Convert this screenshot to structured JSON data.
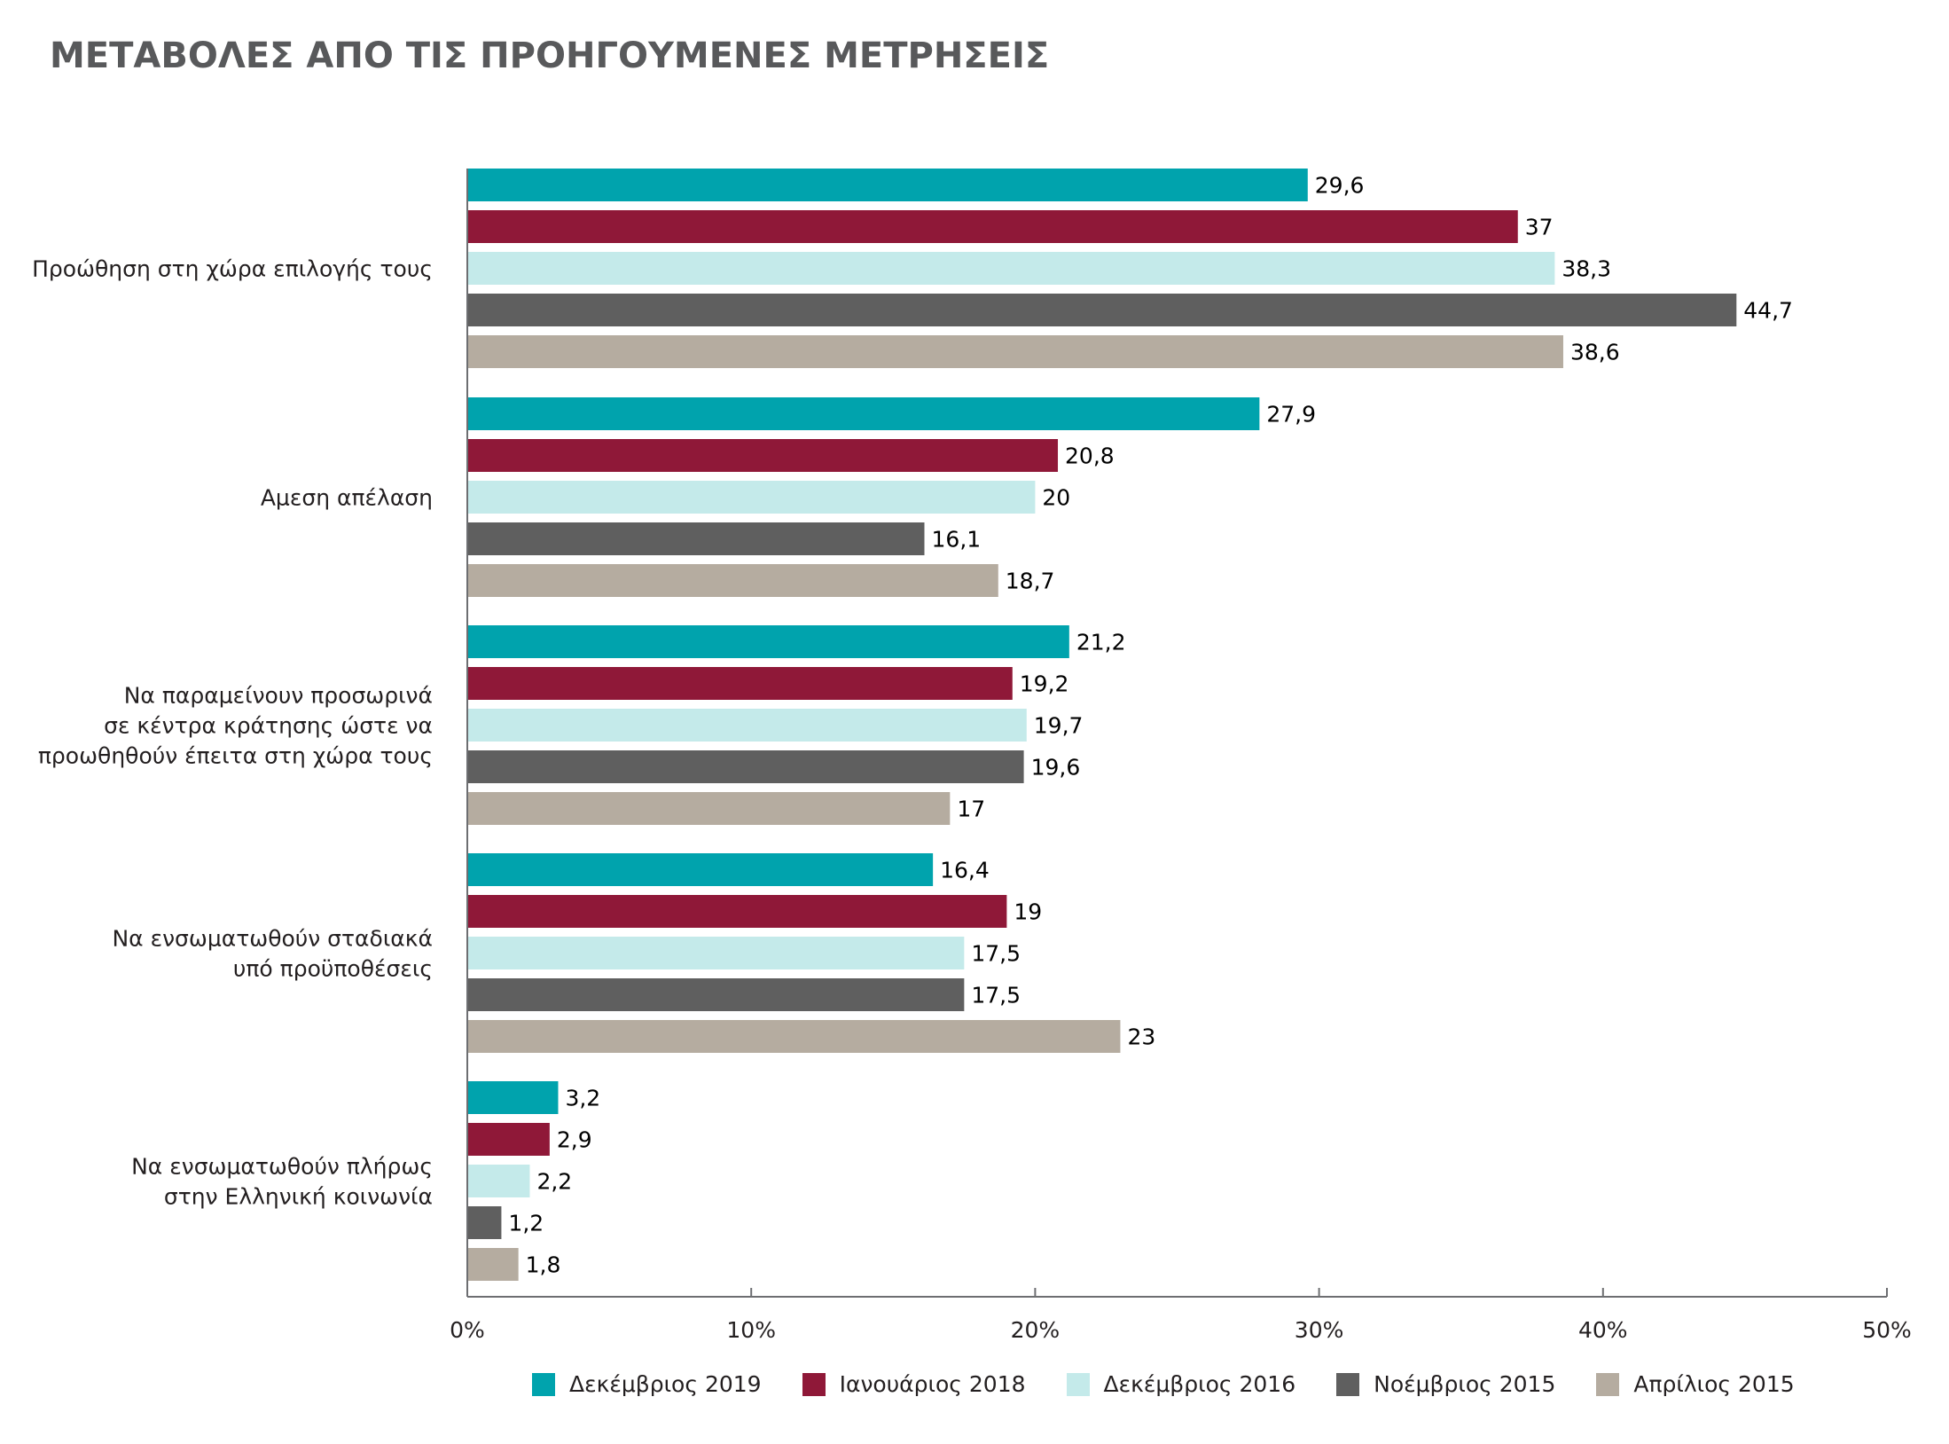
{
  "header": {
    "title": "ΜΕΤΑΒΟΛΕΣ ΑΠΟ ΤΙΣ ΠΡΟΗΓΟΥΜΕΝΕΣ ΜΕΤΡΗΣΕΙΣ"
  },
  "chart_data": {
    "type": "bar",
    "orientation": "horizontal",
    "title": "ΜΕΤΑΒΟΛΕΣ ΑΠΟ ΤΙΣ ΠΡΟΗΓΟΥΜΕΝΕΣ ΜΕΤΡΗΣΕΙΣ",
    "xlabel": "",
    "ylabel": "",
    "xlim": [
      0,
      50
    ],
    "x_ticks": [
      0,
      10,
      20,
      30,
      40,
      50
    ],
    "x_tick_labels": [
      "0%",
      "10%",
      "20%",
      "30%",
      "40%",
      "50%"
    ],
    "grid": false,
    "legend_position": "bottom",
    "categories": [
      [
        "Προώθηση στη χώρα επιλογής τους"
      ],
      [
        "Αμεση απέλαση"
      ],
      [
        "Να παραμείνουν προσωρινά",
        "σε κέντρα κράτησης ώστε να",
        "προωθηθούν έπειτα στη χώρα τους"
      ],
      [
        "Να ενσωματωθούν σταδιακά",
        "υπό προϋποθέσεις"
      ],
      [
        "Να ενσωματωθούν πλήρως",
        "στην Ελληνική κοινωνία"
      ]
    ],
    "series": [
      {
        "name": "Δεκέμβριος 2019",
        "color": "#00a3ad",
        "values": [
          29.6,
          27.9,
          21.2,
          16.4,
          3.2
        ],
        "labels": [
          "29,6",
          "27,9",
          "21,2",
          "16,4",
          "3,2"
        ]
      },
      {
        "name": "Ιανουάριος 2018",
        "color": "#8f1838",
        "values": [
          37,
          20.8,
          19.2,
          19,
          2.9
        ],
        "labels": [
          "37",
          "20,8",
          "19,2",
          "19",
          "2,9"
        ]
      },
      {
        "name": "Δεκέμβριος 2016",
        "color": "#c4eaea",
        "values": [
          38.3,
          20,
          19.7,
          17.5,
          2.2
        ],
        "labels": [
          "38,3",
          "20",
          "19,7",
          "17,5",
          "2,2"
        ]
      },
      {
        "name": "Νοέμβριος 2015",
        "color": "#5f5f5f",
        "values": [
          44.7,
          16.1,
          19.6,
          17.5,
          1.2
        ],
        "labels": [
          "44,7",
          "16,1",
          "19,6",
          "17,5",
          "1,2"
        ]
      },
      {
        "name": "Απρίλιος 2015",
        "color": "#b5aca0",
        "values": [
          38.6,
          18.7,
          17,
          23,
          1.8
        ],
        "labels": [
          "38,6",
          "18,7",
          "17",
          "23",
          "1,8"
        ]
      }
    ]
  }
}
